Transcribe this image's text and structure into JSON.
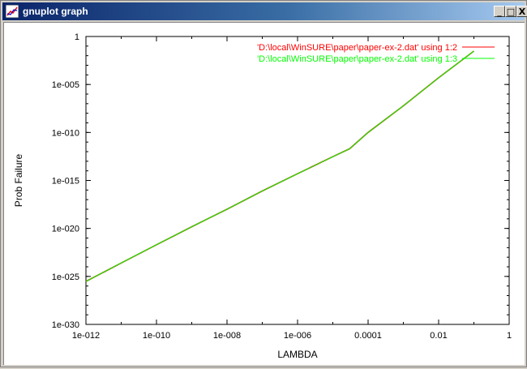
{
  "window": {
    "title": "gnuplot graph",
    "buttons": {
      "minimize": "_",
      "maximize": "□",
      "close": "X"
    }
  },
  "chart_data": {
    "type": "line",
    "title": "",
    "xlabel": "LAMBDA",
    "ylabel": "Prob Failure",
    "x_scale": "log",
    "y_scale": "log",
    "xlim": [
      1e-12,
      1
    ],
    "ylim": [
      1e-30,
      1
    ],
    "x_ticks": [
      1e-12,
      1e-10,
      1e-08,
      1e-06,
      0.0001,
      0.01,
      1
    ],
    "x_tick_labels": [
      "1e-012",
      "1e-010",
      "1e-008",
      "1e-006",
      "0.0001",
      "0.01",
      "1"
    ],
    "y_ticks": [
      1,
      1e-05,
      1e-10,
      1e-15,
      1e-20,
      1e-25,
      1e-30
    ],
    "y_tick_labels": [
      "1",
      "1e-005",
      "1e-010",
      "1e-015",
      "1e-020",
      "1e-025",
      "1e-030"
    ],
    "grid": false,
    "legend_position": "top-right",
    "series": [
      {
        "name": "'D:\\local\\WinSURE\\paper\\paper-ex-2.dat' using 1:2",
        "color": "#ff0000",
        "x": [
          1e-12,
          1e-11,
          1e-10,
          1e-09,
          1e-08,
          1e-07,
          1e-06,
          1e-05,
          3e-05,
          0.0001,
          0.001,
          0.01,
          0.1
        ],
        "y": [
          3e-26,
          2.5e-24,
          2e-22,
          1.5e-20,
          1e-18,
          8e-17,
          5e-15,
          3e-13,
          2e-12,
          1e-10,
          6e-08,
          5e-05,
          0.03
        ]
      },
      {
        "name": "'D:\\local\\WinSURE\\paper\\paper-ex-2.dat' using 1:3",
        "color": "#00ff00",
        "x": [
          1e-12,
          1e-11,
          1e-10,
          1e-09,
          1e-08,
          1e-07,
          1e-06,
          1e-05,
          3e-05,
          0.0001,
          0.001,
          0.01,
          0.1
        ],
        "y": [
          3e-26,
          2.5e-24,
          2e-22,
          1.5e-20,
          1e-18,
          8e-17,
          5e-15,
          3e-13,
          2e-12,
          1e-10,
          6e-08,
          5e-05,
          0.03
        ]
      }
    ]
  }
}
